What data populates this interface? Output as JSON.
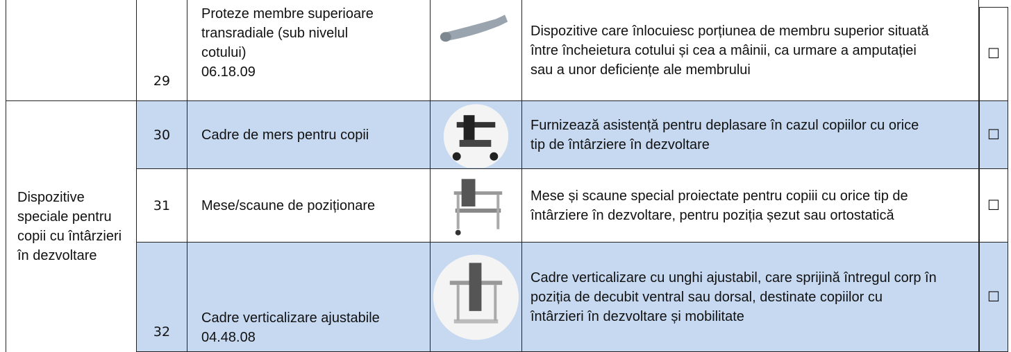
{
  "category": "Dispozitive speciale pentru copii cu întârzieri în dezvoltare",
  "rows": [
    {
      "number": "29",
      "name": "Proteze membre superioare transradiale (sub nivelul cotului)\n06.18.09",
      "description": "Dispozitive care înlocuiesc porțiunea de membru superior situată între încheietura cotului și cea a mâinii, ca urmare a amputației sau a unor deficiențe ale membrului",
      "checkbox": "☐"
    },
    {
      "number": "30",
      "name": "Cadre de mers pentru copii",
      "description": "Furnizează asistență pentru deplasare în cazul copiilor cu orice tip de întârziere în dezvoltare",
      "checkbox": "☐"
    },
    {
      "number": "31",
      "name": "Mese/scaune de poziționare",
      "description": "Mese și scaune special proiectate pentru copiii cu orice tip de întârziere în dezvoltare, pentru poziția șezut sau ortostatică",
      "checkbox": "☐"
    },
    {
      "number": "32",
      "name": "Cadre verticalizare ajustabile\n04.48.08",
      "description": "Cadre verticalizare cu unghi ajustabil, care sprijină întregul corp în poziția de decubit ventral sau dorsal, destinate copiilor cu întârzieri în dezvoltare și mobilitate",
      "checkbox": "☐"
    }
  ]
}
